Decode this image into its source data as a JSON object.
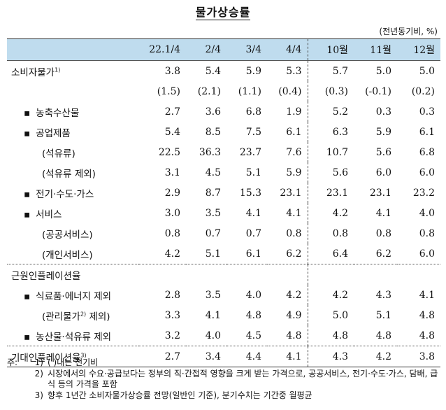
{
  "title": "물가상승률",
  "unit": "(전년동기비, %)",
  "columns": [
    "22.1/4",
    "2/4",
    "3/4",
    "4/4",
    "10월",
    "11월",
    "12월"
  ],
  "rows": [
    {
      "label": "소비자물가",
      "sup": "1)",
      "values": [
        "3.8",
        "5.4",
        "5.9",
        "5.3",
        "5.7",
        "5.0",
        "5.0"
      ]
    },
    {
      "label": "",
      "sup": "",
      "values": [
        "(1.5)",
        "(2.1)",
        "(1.1)",
        "(0.4)",
        "(0.3)",
        "(-0.1)",
        "(0.2)"
      ]
    },
    {
      "label": "농축수산물",
      "bullet": "▪",
      "values": [
        "2.7",
        "3.6",
        "6.8",
        "1.9",
        "5.2",
        "0.3",
        "0.3"
      ]
    },
    {
      "label": "공업제품",
      "bullet": "▪",
      "values": [
        "5.4",
        "8.5",
        "7.5",
        "6.1",
        "6.3",
        "5.9",
        "6.1"
      ]
    },
    {
      "label": "(석유류)",
      "values": [
        "22.5",
        "36.3",
        "23.7",
        "7.6",
        "10.7",
        "5.6",
        "6.8"
      ]
    },
    {
      "label": "(석유류 제외)",
      "values": [
        "3.1",
        "4.5",
        "5.1",
        "5.9",
        "5.6",
        "6.0",
        "6.0"
      ]
    },
    {
      "label": "전기·수도·가스",
      "bullet": "▪",
      "values": [
        "2.9",
        "8.7",
        "15.3",
        "23.1",
        "23.1",
        "23.1",
        "23.2"
      ]
    },
    {
      "label": "서비스",
      "bullet": "▪",
      "values": [
        "3.0",
        "3.5",
        "4.1",
        "4.1",
        "4.2",
        "4.1",
        "4.0"
      ]
    },
    {
      "label": "(공공서비스)",
      "values": [
        "0.8",
        "0.7",
        "0.7",
        "0.8",
        "0.8",
        "0.8",
        "0.8"
      ]
    },
    {
      "label": "(개인서비스)",
      "values": [
        "4.2",
        "5.1",
        "6.1",
        "6.2",
        "6.4",
        "6.2",
        "6.0"
      ]
    },
    {
      "label": "근원인플레이션율",
      "values": [
        "",
        "",
        "",
        "",
        "",
        "",
        ""
      ]
    },
    {
      "label": "식료품·에너지 제외",
      "bullet": "▪",
      "values": [
        "2.8",
        "3.5",
        "4.0",
        "4.2",
        "4.2",
        "4.3",
        "4.1"
      ]
    },
    {
      "label": "(관리물가",
      "sup": "2)",
      "label_tail": " 제외)",
      "values": [
        "3.3",
        "4.1",
        "4.8",
        "4.9",
        "5.0",
        "5.1",
        "4.8"
      ]
    },
    {
      "label": "농산물·석유류 제외",
      "bullet": "▪",
      "values": [
        "3.2",
        "4.0",
        "4.5",
        "4.8",
        "4.8",
        "4.8",
        "4.8"
      ]
    },
    {
      "label": "기대인플레이션율",
      "sup": "3)",
      "values": [
        "2.7",
        "3.4",
        "4.4",
        "4.1",
        "4.3",
        "4.2",
        "3.8"
      ]
    }
  ],
  "notes": {
    "prefix": "주:",
    "items": [
      {
        "num": "1)",
        "text": "(  )내는 전기비"
      },
      {
        "num": "2)",
        "text": "시장에서의 수요·공급보다는 정부의 직·간접적 영향을 크게 받는 가격으로, 공공서비스, 전기·수도·가스, 담배, 급식 등의 가격을 포함"
      },
      {
        "num": "3)",
        "text": "향후 1년간 소비자물가상승률 전망(일반인 기준), 분기수치는 기간중 월평균"
      }
    ]
  }
}
